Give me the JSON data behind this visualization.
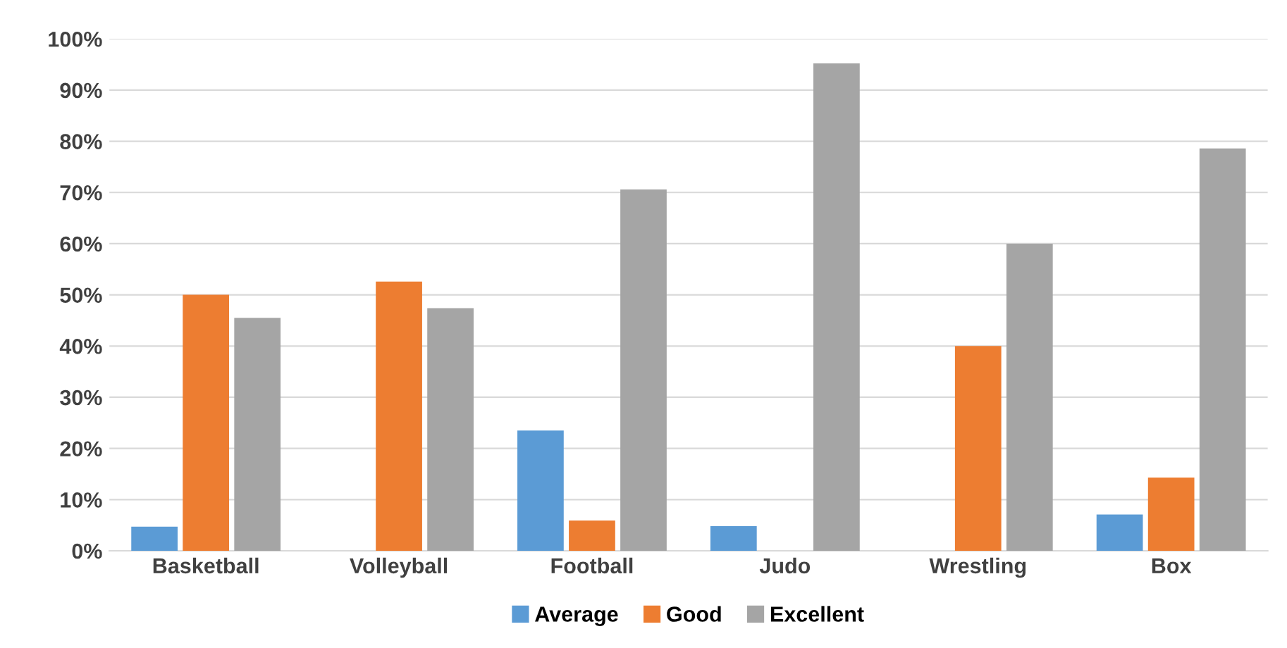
{
  "chart_data": {
    "type": "bar",
    "categories": [
      "Basketball",
      "Volleyball",
      "Football",
      "Judo",
      "Wrestling",
      "Box"
    ],
    "series": [
      {
        "name": "Average",
        "color": "#5b9bd5",
        "values": [
          4.7,
          0,
          23.5,
          4.8,
          0,
          7.1
        ]
      },
      {
        "name": "Good",
        "color": "#ed7d31",
        "values": [
          50,
          52.6,
          5.9,
          0,
          40,
          14.3
        ]
      },
      {
        "name": "Excellent",
        "color": "#a5a5a5",
        "values": [
          45.5,
          47.4,
          70.6,
          95.2,
          60,
          78.6
        ]
      }
    ],
    "ylim": [
      0,
      100
    ],
    "yticks": [
      {
        "value": 0,
        "label": "0%"
      },
      {
        "value": 10,
        "label": "10%"
      },
      {
        "value": 20,
        "label": "20%"
      },
      {
        "value": 30,
        "label": "30%"
      },
      {
        "value": 40,
        "label": "40%"
      },
      {
        "value": 50,
        "label": "50%"
      },
      {
        "value": 60,
        "label": "60%"
      },
      {
        "value": 70,
        "label": "70%"
      },
      {
        "value": 80,
        "label": "80%"
      },
      {
        "value": 90,
        "label": "90%"
      },
      {
        "value": 100,
        "label": "100%"
      }
    ],
    "grid": "y",
    "legend": "bottom"
  }
}
